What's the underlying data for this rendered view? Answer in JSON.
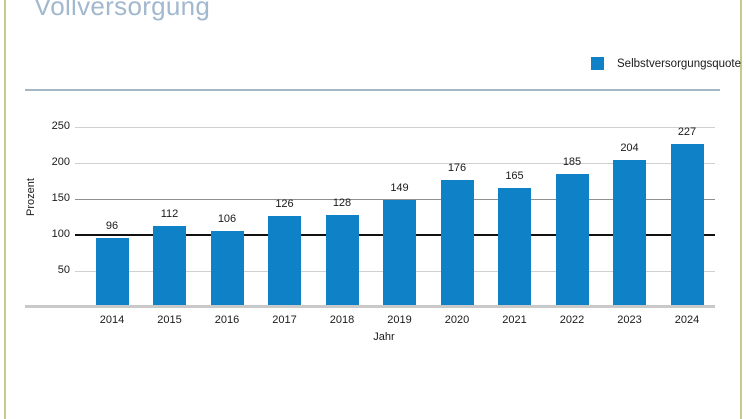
{
  "header": {
    "title": "Vollversorgung"
  },
  "legend": {
    "label": "Selbstversorgungsquote",
    "swatch_color": "#0f81c6"
  },
  "chart_data": {
    "type": "bar",
    "title": "Vollversorgung",
    "categories": [
      "2014",
      "2015",
      "2016",
      "2017",
      "2018",
      "2019",
      "2020",
      "2021",
      "2022",
      "2023",
      "2024"
    ],
    "series": [
      {
        "name": "Selbstversorgungsquote",
        "values": [
          96,
          112,
          106,
          126,
          128,
          149,
          176,
          165,
          185,
          204,
          227
        ]
      }
    ],
    "xlabel": "Jahr",
    "ylabel": "Prozent",
    "yticks": [
      50,
      100,
      150,
      200,
      250
    ],
    "ylim": [
      0,
      260
    ],
    "grid": "horizontal",
    "reference_line_y": 100,
    "value_labels": true,
    "legend_position": "top-right",
    "bar_color": "#0f81c6"
  },
  "colors": {
    "bar": "#0f81c6",
    "title_text": "#a2b8ce",
    "header_separator": "#a3b8c4",
    "gridline": "#d0d0d0",
    "gridline_150": "#8f8f8f",
    "reference_line": "#111111",
    "axis_baseline": "#c9c9c9",
    "frame_border": "#c6ca8c",
    "label_text": "#1a1a1a"
  }
}
